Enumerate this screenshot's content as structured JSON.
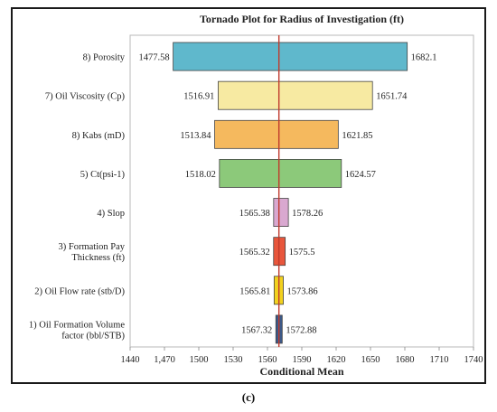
{
  "caption": "(c)",
  "chart_data": {
    "type": "tornado",
    "title": "Tornado Plot for Radius of Investigation (ft)",
    "xlabel": "Conditional Mean",
    "xlim": [
      1440,
      1740
    ],
    "xticks": [
      "1440",
      "1,470",
      "1500",
      "1530",
      "1560",
      "1590",
      "1620",
      "1650",
      "1680",
      "1710",
      "1740"
    ],
    "base_value": 1570,
    "base_color": "#c0392b",
    "grid": false,
    "bars": [
      {
        "label": "8) Porosity",
        "low": 1477.58,
        "high": 1682.1,
        "low_label": "1477.58",
        "high_label": "1682.1",
        "color": "#5fb8cc"
      },
      {
        "label": "7) Oil Viscosity (Cp)",
        "low": 1516.91,
        "high": 1651.74,
        "low_label": "1516.91",
        "high_label": "1651.74",
        "color": "#f7eaa2"
      },
      {
        "label": "8) Kabs (mD)",
        "low": 1513.84,
        "high": 1621.85,
        "low_label": "1513.84",
        "high_label": "1621.85",
        "color": "#f5b95e"
      },
      {
        "label": "5) Ct(psi-1)",
        "low": 1518.02,
        "high": 1624.57,
        "low_label": "1518.02",
        "high_label": "1624.57",
        "color": "#8cc97a"
      },
      {
        "label": "4) Slop",
        "low": 1565.38,
        "high": 1578.26,
        "low_label": "1565.38",
        "high_label": "1578.26",
        "color": "#d9a8d0"
      },
      {
        "label": "3) Formation Pay\nThickness (ft)",
        "low": 1565.32,
        "high": 1575.5,
        "low_label": "1565.32",
        "high_label": "1575.5",
        "color": "#e8563c"
      },
      {
        "label": "2) Oil Flow rate (stb/D)",
        "low": 1565.81,
        "high": 1573.86,
        "low_label": "1565.81",
        "high_label": "1573.86",
        "color": "#f2d21f"
      },
      {
        "label": "1) Oil Formation Volume\nfactor (bbl/STB)",
        "low": 1567.32,
        "high": 1572.88,
        "low_label": "1567.32",
        "high_label": "1572.88",
        "color": "#3b5a8a"
      }
    ]
  }
}
